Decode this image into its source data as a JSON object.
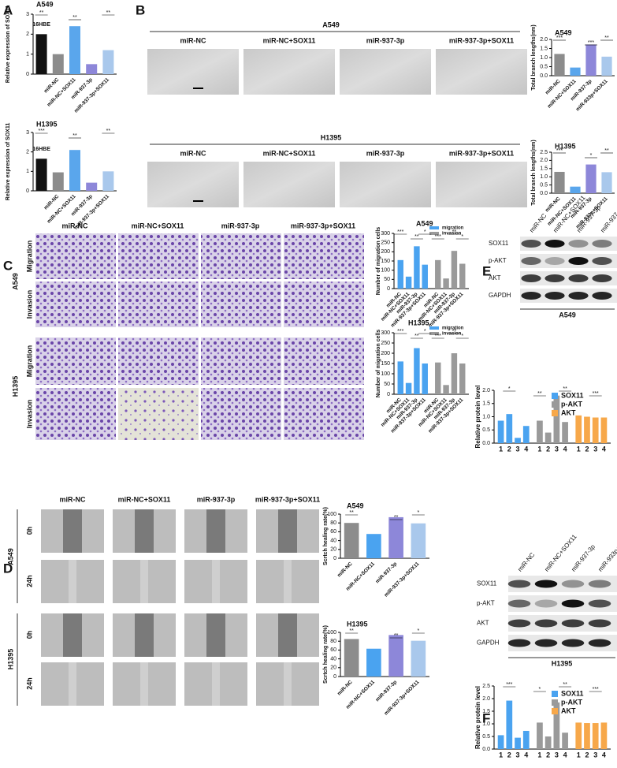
{
  "panels": {
    "letters": [
      "A",
      "B",
      "C",
      "D",
      "E",
      "F"
    ],
    "B": {
      "groups": [
        "A549",
        "H1395"
      ],
      "columns": [
        "miR-NC",
        "miR-NC+SOX11",
        "miR-937-3p",
        "miR-937-3p+SOX11"
      ]
    },
    "C": {
      "columns": [
        "miR-NC",
        "miR-NC+SOX11",
        "miR-937-3p",
        "miR-937-3p+SOX11"
      ],
      "groups": [
        "A549",
        "H1395"
      ],
      "rows": [
        "Migration",
        "Invasion"
      ]
    },
    "D": {
      "columns": [
        "miR-NC",
        "miR-NC+SOX11",
        "miR-937-3p",
        "miR-937-3p+SOX11"
      ],
      "groups": [
        "A549",
        "H1395"
      ],
      "times": [
        "0h",
        "24h"
      ]
    },
    "E": {
      "lanes": [
        "miR-NC",
        "miR-NC+SOX11",
        "miR-937-3p",
        "miR-937-3p+SOX11"
      ],
      "proteins": [
        "SOX11",
        "p-AKT",
        "AKT",
        "GAPDH"
      ],
      "cell": "A549"
    },
    "F": {
      "lanes": [
        "miR-NC",
        "miR-NC+SOX11",
        "miR-937-3p",
        "miR-933p+SOX11"
      ],
      "proteins": [
        "SOX11",
        "p-AKT",
        "AKT",
        "GAPDH"
      ],
      "cell": "H1395"
    }
  },
  "chart_data": [
    {
      "type": "bar",
      "title": "A549",
      "y_label": "Relative expression of SOX11",
      "categories": [
        "16HBE",
        "miR-NC",
        "miR-NC+SOX11",
        "miR-937-3p",
        "miR-937-3p+SOX11"
      ],
      "values": [
        2.0,
        1.0,
        2.4,
        0.5,
        1.2
      ],
      "colors": [
        "#111111",
        "#8c8c8c",
        "#5aa6ec",
        "#8d87d9",
        "#a9c8ec"
      ],
      "ylim": [
        0,
        3
      ],
      "yticks": [
        0,
        1,
        2,
        3
      ],
      "annotations": [
        "**",
        "**",
        "**"
      ]
    },
    {
      "type": "bar",
      "title": "H1395",
      "y_label": "Relative expression of SOX11",
      "categories": [
        "16HBE",
        "miR-NC",
        "miR-NC+SOX11",
        "miR-937-3p",
        "miR-937-3p+SOX11"
      ],
      "values": [
        1.65,
        0.95,
        2.1,
        0.42,
        1.0
      ],
      "colors": [
        "#111111",
        "#8c8c8c",
        "#5aa6ec",
        "#8d87d9",
        "#a9c8ec"
      ],
      "ylim": [
        0,
        3
      ],
      "yticks": [
        0,
        1,
        2,
        3
      ],
      "annotations": [
        "***",
        "**",
        "**"
      ]
    },
    {
      "type": "bar",
      "title": "A549",
      "y_label": "Total branch lengths(nm)",
      "categories": [
        "miR-NC",
        "miR-NC+SOX11",
        "miR-937-3p",
        "miR-933p+SOX11"
      ],
      "values": [
        1.2,
        0.45,
        1.72,
        1.05
      ],
      "colors": [
        "#8c8c8c",
        "#5aa6ec",
        "#8d87d9",
        "#a9c8ec"
      ],
      "ylim": [
        0,
        2
      ],
      "yticks": [
        {
          "value": 0,
          "label": "0.0"
        },
        {
          "value": 0.5,
          "label": "0.5"
        },
        {
          "value": 1,
          "label": "1.0"
        },
        {
          "value": 1.5,
          "label": "1.5"
        },
        {
          "value": 2,
          "label": "2.0"
        }
      ],
      "annotations": [
        "***",
        "***",
        "**"
      ]
    },
    {
      "type": "bar",
      "title": "H1395",
      "y_label": "Total branch lengths(nm)",
      "categories": [
        "miR-NC",
        "miR-NC+SOX11",
        "miR-937-3p",
        "miR-933p+SOX11"
      ],
      "values": [
        1.3,
        0.4,
        1.75,
        1.28
      ],
      "colors": [
        "#8c8c8c",
        "#5aa6ec",
        "#8d87d9",
        "#a9c8ec"
      ],
      "ylim": [
        0,
        2.5
      ],
      "yticks": [
        {
          "value": 0,
          "label": "0.0"
        },
        {
          "value": 0.5,
          "label": "0.5"
        },
        {
          "value": 1,
          "label": "1.0"
        },
        {
          "value": 1.5,
          "label": "1.5"
        },
        {
          "value": 2,
          "label": "2.0"
        },
        {
          "value": 2.5,
          "label": "2.5"
        }
      ],
      "annotations": [
        "***",
        "*",
        "**"
      ]
    },
    {
      "type": "bar",
      "title": "A549",
      "y_label": "Number of migration cells",
      "categories": [
        "miR-NC",
        "miR-NC+SOX11",
        "miR-937-3p",
        "miR-937-3p+SOX11"
      ],
      "series": [
        {
          "name": "migration",
          "color": "#4aa3f0",
          "values": [
            155,
            65,
            230,
            130
          ]
        },
        {
          "name": "invasion",
          "color": "#9a9a9a",
          "values": [
            155,
            55,
            205,
            135
          ]
        }
      ],
      "ylim": [
        0,
        300
      ],
      "yticks": [
        0,
        50,
        100,
        150,
        200,
        250,
        300
      ],
      "annotations": [
        "***",
        "**",
        "*",
        "***",
        "**",
        "*"
      ]
    },
    {
      "type": "bar",
      "title": "H1395",
      "y_label": "Number of migration cells",
      "categories": [
        "miR-NC",
        "miR-NC+SOX11",
        "miR-937-3p",
        "miR-937-3p+SOX11"
      ],
      "series": [
        {
          "name": "migration",
          "color": "#4aa3f0",
          "values": [
            160,
            55,
            225,
            150
          ]
        },
        {
          "name": "invasion",
          "color": "#9a9a9a",
          "values": [
            155,
            45,
            200,
            150
          ]
        }
      ],
      "ylim": [
        0,
        300
      ],
      "yticks": [
        0,
        50,
        100,
        150,
        200,
        250,
        300
      ],
      "annotations": [
        "***",
        "**",
        "*",
        "***",
        "**",
        "*"
      ]
    },
    {
      "type": "bar",
      "y_label": "Relative protein level",
      "categories": [
        "1",
        "2",
        "3",
        "4"
      ],
      "series": [
        {
          "name": "SOX11",
          "color": "#4aa3f0",
          "values": [
            0.85,
            1.1,
            0.2,
            0.65
          ]
        },
        {
          "name": "p-AKT",
          "color": "#9a9a9a",
          "values": [
            0.85,
            0.4,
            1.8,
            0.8
          ]
        },
        {
          "name": "AKT",
          "color": "#f7a84a",
          "values": [
            1.05,
            1.0,
            0.97,
            0.97
          ]
        }
      ],
      "ylim": [
        0,
        2
      ],
      "yticks": [
        {
          "value": 0,
          "label": "0.0"
        },
        {
          "value": 0.5,
          "label": "0.5"
        },
        {
          "value": 1,
          "label": "1.0"
        },
        {
          "value": 1.5,
          "label": "1.5"
        },
        {
          "value": 2,
          "label": "2.0"
        }
      ],
      "annotations": [
        "*",
        "**",
        "**",
        "***"
      ]
    },
    {
      "type": "bar",
      "title": "A549",
      "y_label": "Scrtch healing rate(%)",
      "categories": [
        "miR-NC",
        "miR-NC+SOX11",
        "miR-937-3p",
        "miR-937-3p+SOX11"
      ],
      "values": [
        80,
        55,
        93,
        79
      ],
      "colors": [
        "#8c8c8c",
        "#4aa3f0",
        "#8d87d9",
        "#a9c8ec"
      ],
      "ylim": [
        0,
        100
      ],
      "yticks": [
        0,
        20,
        40,
        60,
        80,
        100
      ],
      "annotations": [
        "**",
        "**",
        "*"
      ]
    },
    {
      "type": "bar",
      "title": "H1395",
      "y_label": "Scrtch healing rate(%)",
      "categories": [
        "miR-NC",
        "miR-NC+SOX11",
        "miR-937-3p",
        "miR-937-3p+SOX11"
      ],
      "values": [
        85,
        63,
        94,
        81
      ],
      "colors": [
        "#8c8c8c",
        "#4aa3f0",
        "#8d87d9",
        "#a9c8ec"
      ],
      "ylim": [
        0,
        100
      ],
      "yticks": [
        0,
        20,
        40,
        60,
        80,
        100
      ],
      "annotations": [
        "**",
        "**",
        "*"
      ]
    },
    {
      "type": "bar",
      "y_label": "Relative protein level",
      "categories": [
        "1",
        "2",
        "3",
        "4"
      ],
      "series": [
        {
          "name": "SOX11",
          "color": "#4aa3f0",
          "values": [
            0.55,
            1.92,
            0.45,
            0.72
          ]
        },
        {
          "name": "p-AKT",
          "color": "#9a9a9a",
          "values": [
            1.05,
            0.5,
            1.85,
            0.65
          ]
        },
        {
          "name": "AKT",
          "color": "#f7a84a",
          "values": [
            1.05,
            1.03,
            1.03,
            1.05
          ]
        }
      ],
      "ylim": [
        0,
        2.5
      ],
      "yticks": [
        {
          "value": 0,
          "label": "0.0"
        },
        {
          "value": 0.5,
          "label": "0.5"
        },
        {
          "value": 1,
          "label": "1.0"
        },
        {
          "value": 1.5,
          "label": "1.5"
        },
        {
          "value": 2,
          "label": "2.0"
        },
        {
          "value": 2.5,
          "label": "2.5"
        }
      ],
      "annotations": [
        "***",
        "*",
        "**",
        "***"
      ]
    }
  ]
}
